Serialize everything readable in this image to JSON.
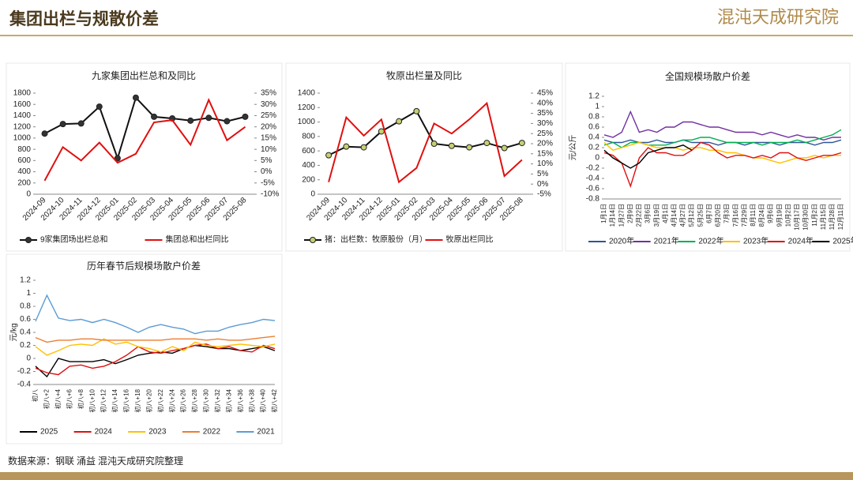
{
  "header": {
    "title": "集团出栏与规散价差",
    "brand": "混沌天成研究院"
  },
  "footer": {
    "source": "数据来源：钢联 涌益 混沌天成研究院整理"
  },
  "chart_data": [
    {
      "type": "line",
      "title": "九家集团出栏总和及同比",
      "categories": [
        "2024-09",
        "2024-10",
        "2024-11",
        "2024-12",
        "2025-01",
        "2025-02",
        "2025-03",
        "2025-04",
        "2025-05",
        "2025-06",
        "2025-07",
        "2025-08"
      ],
      "series": [
        {
          "name": "9家集团场出栏总和",
          "color": "#111111",
          "marker_color": "#333333",
          "values": [
            1080,
            1250,
            1260,
            1560,
            640,
            1720,
            1380,
            1350,
            1310,
            1360,
            1300,
            1380
          ]
        },
        {
          "name": "集团总和出栏同比",
          "color": "#e01010",
          "axis": "y2",
          "values": [
            -4,
            11,
            5,
            13,
            4,
            8,
            22,
            23,
            12,
            32,
            14,
            20
          ]
        }
      ],
      "ylim": [
        0,
        1800
      ],
      "yticks": [
        0,
        200,
        400,
        600,
        800,
        1000,
        1200,
        1400,
        1600,
        1800
      ],
      "y2lim": [
        -10,
        35
      ],
      "y2ticks": [
        {
          "value": -10,
          "label": "-10%"
        },
        {
          "value": -5,
          "label": "-5%"
        },
        {
          "value": 0,
          "label": "0%"
        },
        {
          "value": 5,
          "label": "5%"
        },
        {
          "value": 10,
          "label": "10%"
        },
        {
          "value": 15,
          "label": "15%"
        },
        {
          "value": 20,
          "label": "20%"
        },
        {
          "value": 25,
          "label": "25%"
        },
        {
          "value": 30,
          "label": "30%"
        },
        {
          "value": 35,
          "label": "35%"
        }
      ]
    },
    {
      "type": "line",
      "title": "牧原出栏量及同比",
      "categories": [
        "2024-09",
        "2024-10",
        "2024-11",
        "2024-12",
        "2025-01",
        "2025-02",
        "2025-03",
        "2025-04",
        "2025-05",
        "2025-06",
        "2025-07",
        "2025-08"
      ],
      "series": [
        {
          "name": "猪：出栏数：牧原股份（月）",
          "color": "#111111",
          "marker_color": "#c8cf72",
          "values": [
            540,
            660,
            650,
            870,
            1010,
            1150,
            700,
            670,
            650,
            710,
            640,
            710
          ]
        },
        {
          "name": "牧原出栏同比",
          "color": "#e01010",
          "axis": "y2",
          "values": [
            1,
            33,
            24,
            32,
            1,
            8,
            30,
            25,
            32,
            40,
            4,
            12
          ]
        }
      ],
      "ylim": [
        0,
        1400
      ],
      "yticks": [
        0,
        200,
        400,
        600,
        800,
        1000,
        1200,
        1400
      ],
      "y2lim": [
        -5,
        45
      ],
      "y2ticks": [
        {
          "value": -5,
          "label": "-5%"
        },
        {
          "value": 0,
          "label": "0%"
        },
        {
          "value": 5,
          "label": "5%"
        },
        {
          "value": 10,
          "label": "10%"
        },
        {
          "value": 15,
          "label": "15%"
        },
        {
          "value": 20,
          "label": "20%"
        },
        {
          "value": 25,
          "label": "25%"
        },
        {
          "value": 30,
          "label": "30%"
        },
        {
          "value": 35,
          "label": "35%"
        },
        {
          "value": 40,
          "label": "40%"
        },
        {
          "value": 45,
          "label": "45%"
        }
      ]
    },
    {
      "type": "line",
      "title": "全国规模场散户价差",
      "y_label": "元/公斤",
      "categories": [
        "1月1日",
        "1月14日",
        "1月27日",
        "2月9日",
        "2月22日",
        "3月6日",
        "3月19日",
        "4月1日",
        "4月14日",
        "4月27日",
        "5月12日",
        "5月25日",
        "6月7日",
        "6月20日",
        "7月3日",
        "7月16日",
        "7月29日",
        "8月11日",
        "8月24日",
        "9月6日",
        "9月19日",
        "10月2日",
        "10月17日",
        "10月30日",
        "11月2日",
        "11月15日",
        "11月28日",
        "12月11日"
      ],
      "series": [
        {
          "name": "2020年",
          "color": "#2f5597",
          "values": [
            0.35,
            0.3,
            0.3,
            0.35,
            0.3,
            0.3,
            0.35,
            0.3,
            0.3,
            0.35,
            0.3,
            0.3,
            0.3,
            0.25,
            0.3,
            0.3,
            0.25,
            0.3,
            0.3,
            0.3,
            0.25,
            0.3,
            0.3,
            0.3,
            0.25,
            0.3,
            0.3,
            0.35
          ]
        },
        {
          "name": "2021年",
          "color": "#7030a0",
          "values": [
            0.45,
            0.4,
            0.5,
            0.9,
            0.5,
            0.55,
            0.5,
            0.6,
            0.6,
            0.7,
            0.7,
            0.65,
            0.6,
            0.6,
            0.55,
            0.5,
            0.5,
            0.5,
            0.45,
            0.5,
            0.45,
            0.4,
            0.45,
            0.4,
            0.4,
            0.35,
            0.4,
            0.4
          ]
        },
        {
          "name": "2022年",
          "color": "#00b050",
          "values": [
            0.25,
            0.3,
            0.2,
            0.3,
            0.3,
            0.25,
            0.25,
            0.25,
            0.3,
            0.35,
            0.35,
            0.4,
            0.4,
            0.35,
            0.3,
            0.3,
            0.3,
            0.3,
            0.25,
            0.3,
            0.3,
            0.3,
            0.35,
            0.3,
            0.35,
            0.4,
            0.45,
            0.55
          ]
        },
        {
          "name": "2023年",
          "color": "#ffc000",
          "values": [
            0.3,
            0.15,
            0.2,
            0.25,
            0.3,
            0.25,
            0.2,
            0.2,
            0.2,
            0.15,
            0.2,
            0.2,
            0.15,
            0.15,
            0.1,
            0.1,
            0.05,
            0,
            0,
            -0.05,
            -0.1,
            -0.05,
            0,
            0,
            0.05,
            0,
            0.05,
            0.05
          ]
        },
        {
          "name": "2024年",
          "color": "#e01010",
          "values": [
            0.1,
            0.05,
            -0.1,
            -0.55,
            0,
            0.2,
            0.1,
            0.1,
            0.05,
            0.05,
            0.15,
            0.3,
            0.25,
            0.1,
            0,
            0.05,
            0.05,
            0,
            0.05,
            0,
            0.1,
            0.1,
            0,
            -0.05,
            0,
            0.05,
            0.05,
            0.1
          ]
        },
        {
          "name": "2025年",
          "color": "#000000",
          "values": [
            0.15,
            0,
            -0.1,
            -0.2,
            -0.1,
            0.1,
            0.15,
            0.2,
            0.2,
            0.25,
            0.15,
            null,
            null,
            null,
            null,
            null,
            null,
            null,
            null,
            null,
            null,
            null,
            null,
            null,
            null,
            null,
            null,
            null
          ]
        }
      ],
      "ylim": [
        -0.8,
        1.2
      ],
      "yticks": [
        -0.8,
        -0.6,
        -0.4,
        -0.2,
        0,
        0.2,
        0.4,
        0.6,
        0.8,
        1,
        1.2
      ]
    },
    {
      "type": "line",
      "title": "历年春节后规模场散户价差",
      "y_label": "元/kg",
      "categories": [
        "初八",
        "初八+2",
        "初八+4",
        "初八+6",
        "初八+8",
        "初八+10",
        "初八+12",
        "初八+14",
        "初八+16",
        "初八+18",
        "初八+20",
        "初八+22",
        "初八+24",
        "初八+26",
        "初八+28",
        "初八+30",
        "初八+32",
        "初八+34",
        "初八+36",
        "初八+38",
        "初八+40",
        "初八+42"
      ],
      "series": [
        {
          "name": "2025",
          "color": "#000000",
          "values": [
            -0.12,
            -0.28,
            0,
            -0.05,
            -0.05,
            -0.05,
            -0.02,
            -0.08,
            -0.02,
            0.05,
            0.08,
            0.1,
            0.08,
            0.15,
            0.2,
            0.18,
            0.15,
            0.15,
            0.12,
            0.15,
            0.18,
            0.12
          ]
        },
        {
          "name": "2024",
          "color": "#e01010",
          "values": [
            -0.15,
            -0.22,
            -0.25,
            -0.12,
            -0.1,
            -0.15,
            -0.12,
            -0.05,
            0.05,
            0.18,
            0.1,
            0.08,
            0.12,
            0.15,
            0.2,
            0.22,
            0.15,
            0.18,
            0.12,
            0.1,
            0.2,
            0.15
          ]
        },
        {
          "name": "2023",
          "color": "#ffc000",
          "values": [
            0.18,
            0.05,
            0.12,
            0.2,
            0.22,
            0.2,
            0.3,
            0.22,
            0.25,
            0.18,
            0.15,
            0.1,
            0.18,
            0.12,
            0.25,
            0.2,
            0.18,
            0.2,
            0.22,
            0.2,
            0.18,
            0.22
          ]
        },
        {
          "name": "2022",
          "color": "#ed7d31",
          "values": [
            0.32,
            0.25,
            0.28,
            0.28,
            0.3,
            0.3,
            0.28,
            0.28,
            0.28,
            0.28,
            0.28,
            0.28,
            0.3,
            0.3,
            0.3,
            0.28,
            0.3,
            0.28,
            0.28,
            0.3,
            0.32,
            0.34
          ]
        },
        {
          "name": "2021",
          "color": "#5b9bd5",
          "values": [
            0.57,
            0.97,
            0.62,
            0.58,
            0.6,
            0.55,
            0.6,
            0.55,
            0.48,
            0.4,
            0.48,
            0.52,
            0.48,
            0.45,
            0.38,
            0.42,
            0.42,
            0.48,
            0.52,
            0.55,
            0.6,
            0.58
          ]
        }
      ],
      "ylim": [
        -0.4,
        1.2
      ],
      "yticks": [
        -0.4,
        -0.2,
        0,
        0.2,
        0.4,
        0.6,
        0.8,
        1,
        1.2
      ]
    }
  ]
}
